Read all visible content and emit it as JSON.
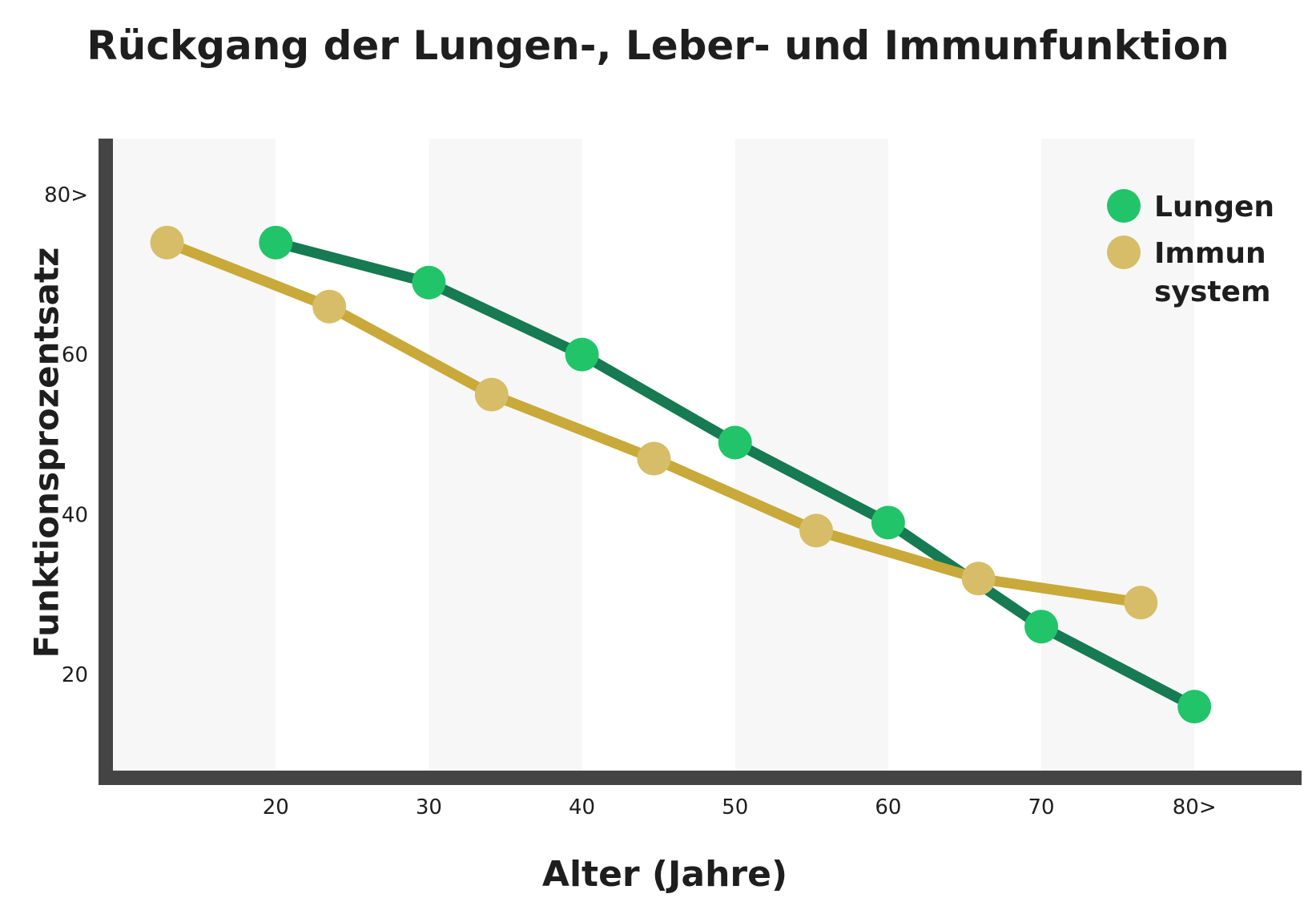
{
  "chart_data": {
    "type": "line",
    "title": "Rückgang der Lungen-, Leber- und Immunfunktion",
    "xlabel": "Alter (Jahre)",
    "ylabel": "Funktionsprozentsatz",
    "x_ticks": [
      {
        "value": 20,
        "label": "20"
      },
      {
        "value": 30,
        "label": "30"
      },
      {
        "value": 40,
        "label": "40"
      },
      {
        "value": 50,
        "label": "50"
      },
      {
        "value": 60,
        "label": "60"
      },
      {
        "value": 70,
        "label": "70"
      },
      {
        "value": 80,
        "label": "80>"
      }
    ],
    "y_ticks": [
      {
        "value": 20,
        "label": "20"
      },
      {
        "value": 40,
        "label": "40"
      },
      {
        "value": 60,
        "label": "60"
      },
      {
        "value": 80,
        "label": "80>"
      }
    ],
    "xlim": [
      9,
      87
    ],
    "ylim": [
      8,
      87
    ],
    "shaded_bands": [
      [
        9,
        20
      ],
      [
        30,
        40
      ],
      [
        50,
        60
      ],
      [
        70,
        80
      ]
    ],
    "legend_position": "top-right",
    "series": [
      {
        "name": "Lungen",
        "legend_lines": [
          "Lungen"
        ],
        "line_color": "#167a52",
        "marker_color": "#22c469",
        "points": [
          [
            20,
            74
          ],
          [
            30,
            69
          ],
          [
            40,
            60
          ],
          [
            50,
            49
          ],
          [
            60,
            39
          ],
          [
            70,
            26
          ],
          [
            80,
            16
          ]
        ]
      },
      {
        "name": "Immun system",
        "legend_lines": [
          "Immun",
          "system"
        ],
        "line_color": "#c8a93a",
        "marker_color": "#d7bd67",
        "points": [
          [
            12.9,
            74
          ],
          [
            23.5,
            66
          ],
          [
            34.1,
            55
          ],
          [
            44.7,
            47
          ],
          [
            55.3,
            38
          ],
          [
            65.9,
            32
          ],
          [
            76.5,
            29
          ]
        ]
      }
    ]
  }
}
